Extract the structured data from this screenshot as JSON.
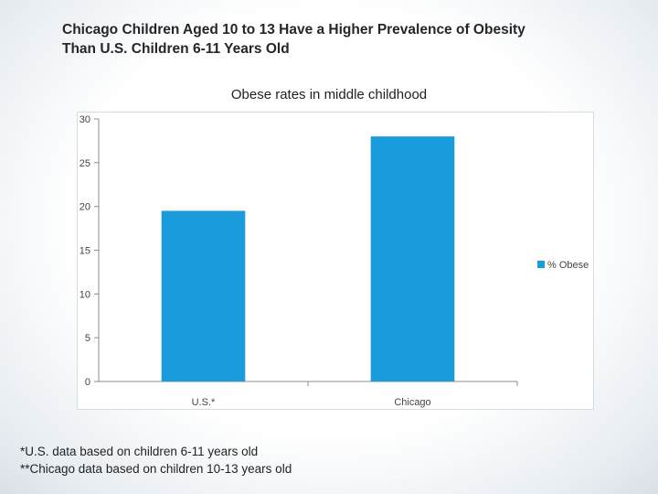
{
  "slide": {
    "title_line1": "Chicago Children Aged 10 to 13 Have a Higher Prevalence of Obesity",
    "title_line2": "Than U.S. Children 6-11 Years Old"
  },
  "chart_data": {
    "type": "bar",
    "title": "Obese rates in middle childhood",
    "categories": [
      "U.S.*",
      "Chicago"
    ],
    "series": [
      {
        "name": "% Obese",
        "values": [
          19.5,
          28
        ],
        "color": "#1a9bdc"
      }
    ],
    "ylim": [
      0,
      30
    ],
    "yticks": [
      "0",
      "5",
      "10",
      "15",
      "20",
      "25",
      "30"
    ],
    "grid": false,
    "legend": "right"
  },
  "footnotes": {
    "line1": "*U.S. data based on children 6-11 years old",
    "line2": "**Chicago data based on children 10-13 years old"
  }
}
